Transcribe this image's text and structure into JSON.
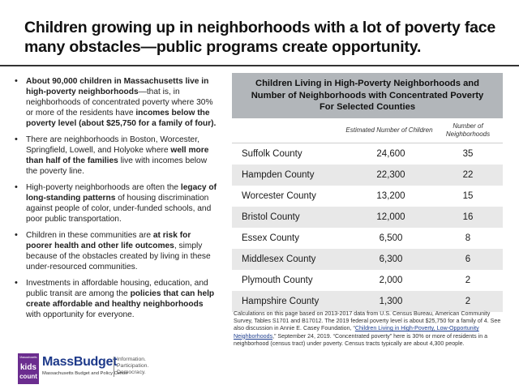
{
  "title": "Children growing up in neighborhoods with a lot of poverty face many obstacles—public programs create opportunity.",
  "bullets": [
    {
      "parts": [
        {
          "t": "About 90,000 children in Massachusetts live in high-poverty neighborhoods",
          "b": true
        },
        {
          "t": "—that is, in neighborhoods of concentrated poverty where 30% or more of the residents have ",
          "b": false
        },
        {
          "t": "incomes below the poverty level (about $25,750 for a family of four).",
          "b": true
        }
      ]
    },
    {
      "parts": [
        {
          "t": "There are neighborhoods in Boston, Worcester, Springfield, Lowell, and Holyoke where ",
          "b": false
        },
        {
          "t": "well more than half of the families",
          "b": true
        },
        {
          "t": " live with incomes below the poverty line.",
          "b": false
        }
      ]
    },
    {
      "parts": [
        {
          "t": "High-poverty neighborhoods are often the ",
          "b": false
        },
        {
          "t": "legacy of long-standing patterns",
          "b": true
        },
        {
          "t": " of housing discrimination against people of color, under-funded schools, and poor public transportation.",
          "b": false
        }
      ]
    },
    {
      "parts": [
        {
          "t": "Children in these communities are ",
          "b": false
        },
        {
          "t": "at risk for poorer health and other life outcomes",
          "b": true
        },
        {
          "t": ", simply because of the obstacles created by living in these under-resourced  communities.",
          "b": false
        }
      ]
    },
    {
      "parts": [
        {
          "t": "Investments in affordable housing, education, and public transit are among the ",
          "b": false
        },
        {
          "t": "policies that can help create affordable  and  healthy neighborhoods",
          "b": true
        },
        {
          "t": " with opportunity for everyone.",
          "b": false
        }
      ]
    }
  ],
  "table": {
    "title_lines": [
      "Children Living in High-Poverty Neighborhoods and",
      "Number of Neighborhoods with Concentrated Poverty",
      "For Selected Counties"
    ],
    "col_headers": [
      "Estimated Number of Children",
      "Number of Neighborhoods"
    ],
    "rows": [
      {
        "county": "Suffolk County",
        "children": "24,600",
        "neighborhoods": "35"
      },
      {
        "county": "Hampden County",
        "children": "22,300",
        "neighborhoods": "22"
      },
      {
        "county": "Worcester County",
        "children": "13,200",
        "neighborhoods": "15"
      },
      {
        "county": "Bristol County",
        "children": "12,000",
        "neighborhoods": "16"
      },
      {
        "county": "Essex County",
        "children": "6,500",
        "neighborhoods": "8"
      },
      {
        "county": "Middlesex County",
        "children": "6,300",
        "neighborhoods": "6"
      },
      {
        "county": "Plymouth County",
        "children": "2,000",
        "neighborhoods": "2"
      },
      {
        "county": "Hampshire County",
        "children": "1,300",
        "neighborhoods": "2"
      }
    ]
  },
  "note": {
    "before": "Calculations on this page based on 2013-2017 data from U.S. Census Bureau, American Community Survey, Tables S1701 and B17012. The 2019 federal poverty level is about $25,750 for a family of 4. See also discussion in Annie E. Casey Foundation, “",
    "link": "Children Living in High-Poverty, Low-Opportunity Neighborhoods",
    "after": ",” September 24, 2019. “Concentrated poverty” here is 30% or more of residents in a neighborhood (census tract) under poverty. Census tracts typically are about 4,300 people."
  },
  "logo": {
    "kids_count_top": "Massachusetts",
    "kids": "kids",
    "count": "count",
    "name": "MassBudget",
    "tagline": "Massachusetts Budget and Policy Center",
    "side": [
      "Information.",
      "Participation.",
      "Democracy."
    ]
  },
  "colors": {
    "table_header": "#b2b6ba",
    "row_shade": "#e8e8e8",
    "brand_purple": "#6b2d8f",
    "brand_blue": "#1e3a8a"
  }
}
